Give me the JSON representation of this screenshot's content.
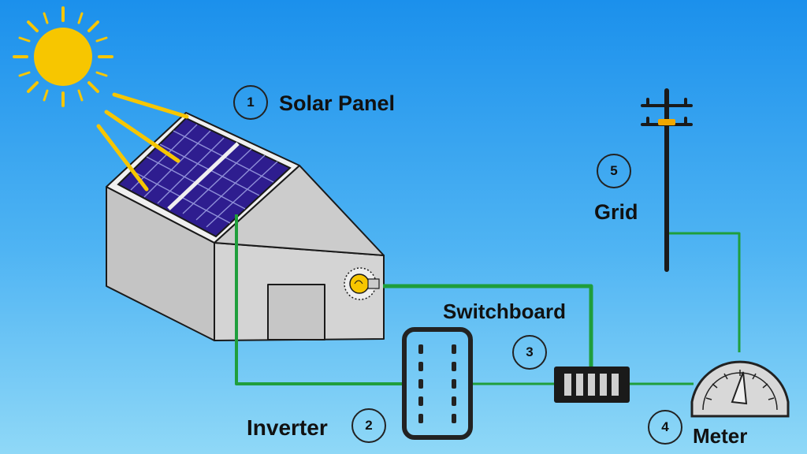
{
  "diagram": {
    "components": [
      {
        "id": "solar-panel",
        "number": "1",
        "label": "Solar Panel"
      },
      {
        "id": "inverter",
        "number": "2",
        "label": "Inverter"
      },
      {
        "id": "switchboard",
        "number": "3",
        "label": "Switchboard"
      },
      {
        "id": "meter",
        "number": "4",
        "label": "Meter"
      },
      {
        "id": "grid",
        "number": "5",
        "label": "Grid"
      }
    ],
    "connections": [
      {
        "from": "solar-panel",
        "to": "inverter"
      },
      {
        "from": "inverter",
        "to": "switchboard"
      },
      {
        "from": "switchboard",
        "to": "meter"
      },
      {
        "from": "meter",
        "to": "grid"
      },
      {
        "from": "switchboard",
        "to": "light-bulb"
      }
    ]
  },
  "colors": {
    "sky_top": "#1b90ec",
    "sky_bottom": "#8fd8f7",
    "sun": "#f7c600",
    "panel": "#2e1d8f",
    "wire": "#1f9e3c",
    "house_wall": "#c9c9c9"
  },
  "icons": [
    "sun-icon",
    "house-icon",
    "solar-panel-icon",
    "light-bulb-icon",
    "inverter-icon",
    "switchboard-icon",
    "meter-icon",
    "utility-pole-icon"
  ]
}
